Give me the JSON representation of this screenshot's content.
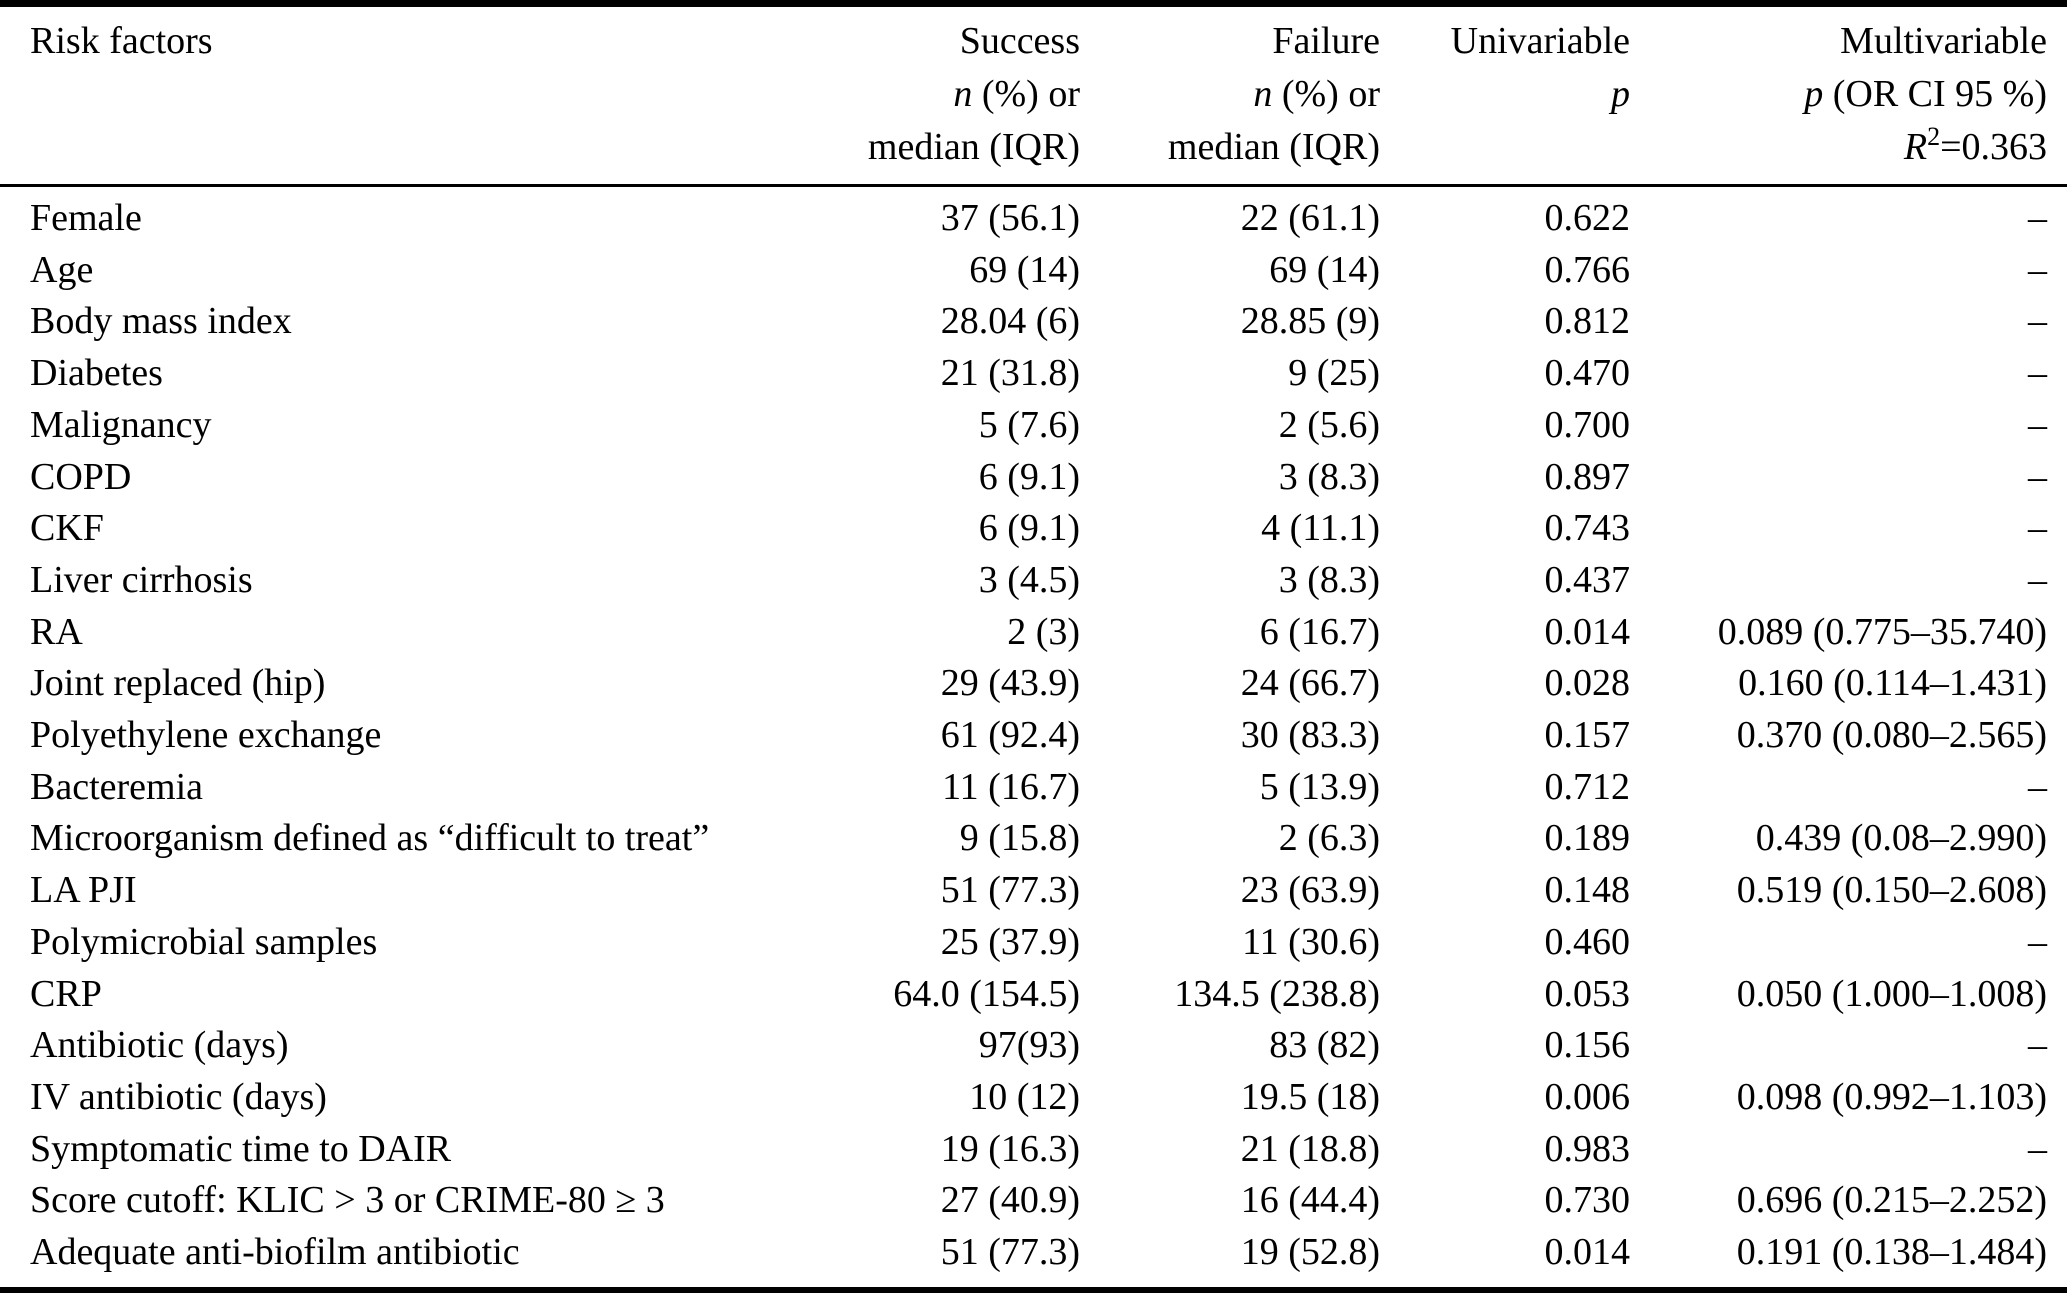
{
  "table": {
    "headers": {
      "risk_factors": "Risk factors",
      "success": {
        "title": "Success",
        "stat_var": "n",
        "stat_rest": " (%) or",
        "line3": "median (IQR)"
      },
      "failure": {
        "title": "Failure",
        "stat_var": "n",
        "stat_rest": " (%) or",
        "line3": "median (IQR)"
      },
      "univariable": {
        "title": "Univariable",
        "p_var": "p"
      },
      "multivariable": {
        "title": "Multivariable",
        "p_var": "p",
        "p_rest": " (OR CI 95 %)",
        "r_var": "R",
        "r_sup": "2",
        "r_rest": "=0.363"
      }
    },
    "rows": [
      {
        "label": "Female",
        "success": "37 (56.1)",
        "failure": "22 (61.1)",
        "univariable": "0.622",
        "multivariable": "–"
      },
      {
        "label": "Age",
        "success": "69 (14)",
        "failure": "69 (14)",
        "univariable": "0.766",
        "multivariable": "–"
      },
      {
        "label": "Body mass index",
        "success": "28.04 (6)",
        "failure": "28.85 (9)",
        "univariable": "0.812",
        "multivariable": "–"
      },
      {
        "label": "Diabetes",
        "success": "21 (31.8)",
        "failure": "9 (25)",
        "univariable": "0.470",
        "multivariable": "–"
      },
      {
        "label": "Malignancy",
        "success": "5 (7.6)",
        "failure": "2 (5.6)",
        "univariable": "0.700",
        "multivariable": "–"
      },
      {
        "label": "COPD",
        "success": "6 (9.1)",
        "failure": "3 (8.3)",
        "univariable": "0.897",
        "multivariable": "–"
      },
      {
        "label": "CKF",
        "success": "6 (9.1)",
        "failure": "4 (11.1)",
        "univariable": "0.743",
        "multivariable": "–"
      },
      {
        "label": "Liver cirrhosis",
        "success": "3 (4.5)",
        "failure": "3 (8.3)",
        "univariable": "0.437",
        "multivariable": "–"
      },
      {
        "label": "RA",
        "success": "2 (3)",
        "failure": "6 (16.7)",
        "univariable": "0.014",
        "multivariable": "0.089 (0.775–35.740)"
      },
      {
        "label": "Joint replaced (hip)",
        "success": "29 (43.9)",
        "failure": "24 (66.7)",
        "univariable": "0.028",
        "multivariable": "0.160 (0.114–1.431)"
      },
      {
        "label": "Polyethylene exchange",
        "success": "61 (92.4)",
        "failure": "30 (83.3)",
        "univariable": "0.157",
        "multivariable": "0.370 (0.080–2.565)"
      },
      {
        "label": "Bacteremia",
        "success": "11 (16.7)",
        "failure": "5 (13.9)",
        "univariable": "0.712",
        "multivariable": "–"
      },
      {
        "label": "Microorganism defined as “difficult to treat”",
        "success": "9 (15.8)",
        "failure": "2 (6.3)",
        "univariable": "0.189",
        "multivariable": "0.439 (0.08–2.990)"
      },
      {
        "label": "LA PJI",
        "success": "51 (77.3)",
        "failure": "23 (63.9)",
        "univariable": "0.148",
        "multivariable": "0.519 (0.150–2.608)"
      },
      {
        "label": "Polymicrobial samples",
        "success": "25 (37.9)",
        "failure": "11 (30.6)",
        "univariable": "0.460",
        "multivariable": "–"
      },
      {
        "label": "CRP",
        "success": "64.0 (154.5)",
        "failure": "134.5 (238.8)",
        "univariable": "0.053",
        "multivariable": "0.050 (1.000–1.008)"
      },
      {
        "label": "Antibiotic (days)",
        "success": "97(93)",
        "failure": "83 (82)",
        "univariable": "0.156",
        "multivariable": "–"
      },
      {
        "label": "IV antibiotic (days)",
        "success": "10 (12)",
        "failure": "19.5 (18)",
        "univariable": "0.006",
        "multivariable": "0.098 (0.992–1.103)"
      },
      {
        "label": "Symptomatic time to DAIR",
        "success": "19 (16.3)",
        "failure": "21 (18.8)",
        "univariable": "0.983",
        "multivariable": "–"
      },
      {
        "label": "Score cutoff: KLIC > 3 or CRIME-80 ≥ 3",
        "success": "27 (40.9)",
        "failure": "16 (44.4)",
        "univariable": "0.730",
        "multivariable": "0.696 (0.215–2.252)"
      },
      {
        "label": "Adequate anti-biofilm antibiotic",
        "success": "51 (77.3)",
        "failure": "19 (52.8)",
        "univariable": "0.014",
        "multivariable": "0.191 (0.138–1.484)"
      }
    ]
  }
}
